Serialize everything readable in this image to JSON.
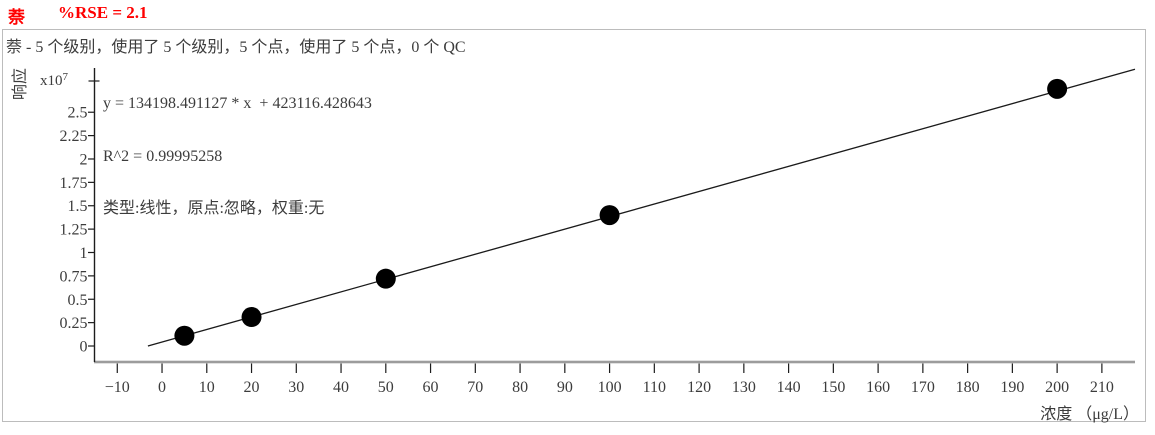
{
  "header": {
    "compound": "萘",
    "rse": "%RSE = 2.1",
    "subtitle": "萘 - 5 个级别，使用了 5 个级别，5 个点，使用了 5 个点，0 个 QC"
  },
  "colors": {
    "accent": "#ff0000",
    "text": "#3c3c3c",
    "box_border": "#bcbcbc",
    "y_axis": "#1c1c1c",
    "x_axis_bar": "#9c9c9c",
    "tick": "#1c1c1c",
    "fit_line": "#1a1a1a",
    "point": "#000000"
  },
  "chart_data": {
    "type": "scatter",
    "title": "",
    "xlabel": "浓度 （μg/L）",
    "ylabel": "响应",
    "y_scale_base": "x10",
    "y_scale_exp": "7",
    "annotation": {
      "equation": "y = 134198.491127 * x  + 423116.428643",
      "r_squared": "R^2 = 0.99995258",
      "model": "类型:线性，原点:忽略，权重:无"
    },
    "fit": {
      "slope": 134198.491127,
      "intercept": 423116.428643,
      "r_squared": 0.99995258
    },
    "points": [
      {
        "x": 5,
        "y_e7": 0.11
      },
      {
        "x": 20,
        "y_e7": 0.31
      },
      {
        "x": 50,
        "y_e7": 0.72
      },
      {
        "x": 100,
        "y_e7": 1.4
      },
      {
        "x": 200,
        "y_e7": 2.75
      }
    ],
    "x_ticks": [
      -10,
      0,
      10,
      20,
      30,
      40,
      50,
      60,
      70,
      80,
      90,
      100,
      110,
      120,
      130,
      140,
      150,
      160,
      170,
      180,
      190,
      200,
      210
    ],
    "y_ticks": [
      0,
      0.25,
      0.5,
      0.75,
      1,
      1.25,
      1.5,
      1.75,
      2,
      2.25,
      2.5
    ],
    "xlim": [
      -15.2,
      217.4
    ],
    "ylim_e7": [
      -0.171,
      2.973
    ],
    "grid": false,
    "legend": null
  }
}
